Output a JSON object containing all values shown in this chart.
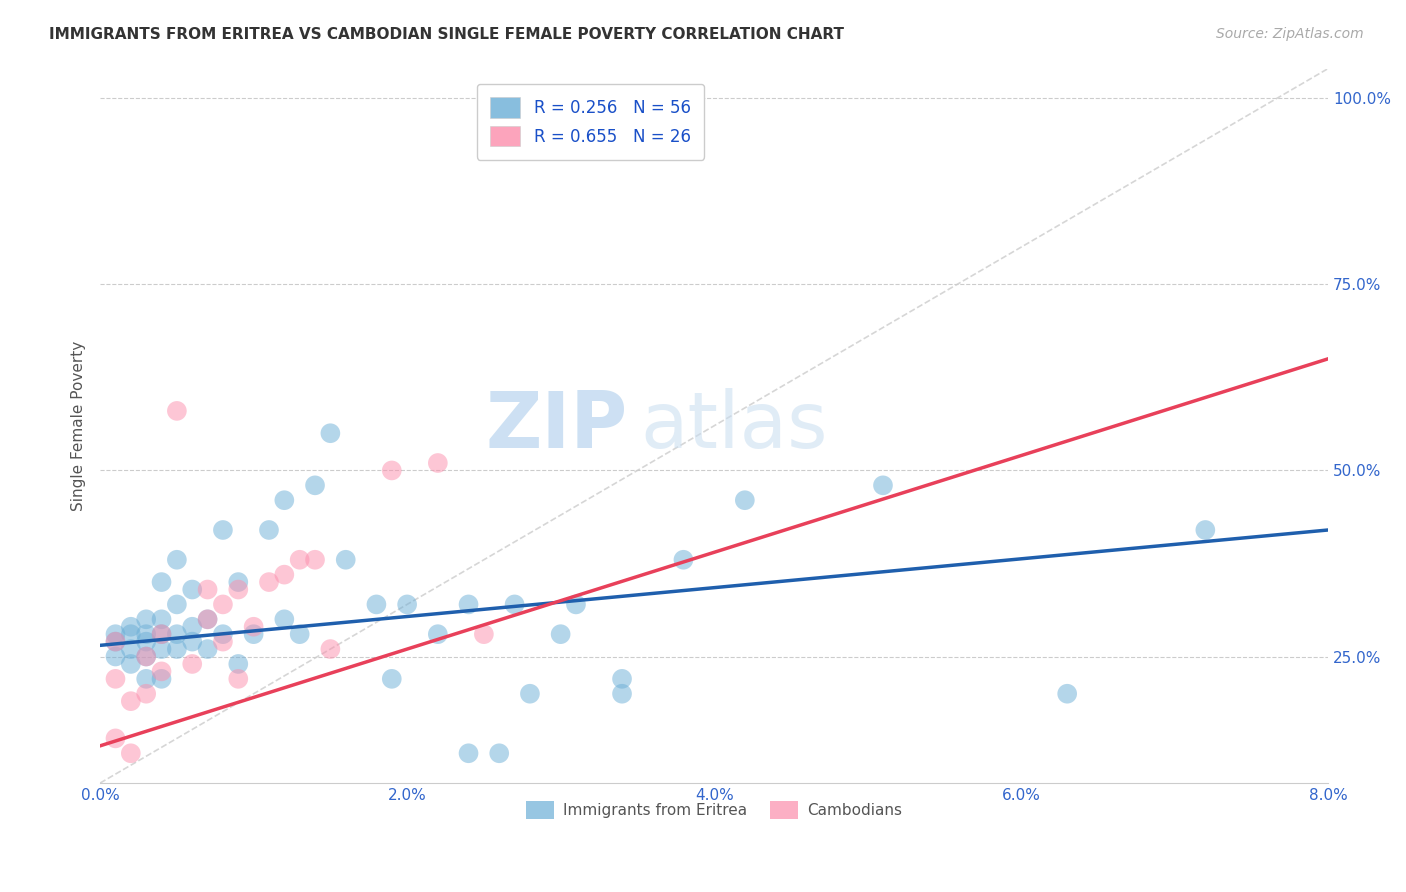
{
  "title": "IMMIGRANTS FROM ERITREA VS CAMBODIAN SINGLE FEMALE POVERTY CORRELATION CHART",
  "source": "Source: ZipAtlas.com",
  "xlabel": "",
  "ylabel": "Single Female Poverty",
  "xlim": [
    0.0,
    0.08
  ],
  "ylim": [
    0.08,
    1.04
  ],
  "xticks": [
    0.0,
    0.02,
    0.04,
    0.06,
    0.08
  ],
  "xticklabels": [
    "0.0%",
    "2.0%",
    "4.0%",
    "6.0%",
    "8.0%"
  ],
  "yticks": [
    0.25,
    0.5,
    0.75,
    1.0
  ],
  "yticklabels": [
    "25.0%",
    "50.0%",
    "75.0%",
    "100.0%"
  ],
  "legend1_label": "R = 0.256   N = 56",
  "legend2_label": "R = 0.655   N = 26",
  "legend_bottom_label1": "Immigrants from Eritrea",
  "legend_bottom_label2": "Cambodians",
  "blue_color": "#6baed6",
  "pink_color": "#fc8eac",
  "trend_blue": "#1f5fad",
  "trend_pink": "#e8405a",
  "watermark_zip": "ZIP",
  "watermark_atlas": "atlas",
  "blue_points_x": [
    0.001,
    0.001,
    0.001,
    0.002,
    0.002,
    0.002,
    0.002,
    0.003,
    0.003,
    0.003,
    0.003,
    0.003,
    0.004,
    0.004,
    0.004,
    0.004,
    0.004,
    0.005,
    0.005,
    0.005,
    0.005,
    0.006,
    0.006,
    0.006,
    0.007,
    0.007,
    0.008,
    0.008,
    0.009,
    0.009,
    0.01,
    0.011,
    0.012,
    0.012,
    0.013,
    0.014,
    0.015,
    0.016,
    0.018,
    0.019,
    0.02,
    0.022,
    0.024,
    0.024,
    0.026,
    0.027,
    0.028,
    0.03,
    0.031,
    0.034,
    0.034,
    0.038,
    0.042,
    0.051,
    0.063,
    0.072
  ],
  "blue_points_y": [
    0.27,
    0.28,
    0.25,
    0.26,
    0.28,
    0.29,
    0.24,
    0.27,
    0.3,
    0.28,
    0.25,
    0.22,
    0.26,
    0.28,
    0.3,
    0.35,
    0.22,
    0.26,
    0.28,
    0.32,
    0.38,
    0.27,
    0.29,
    0.34,
    0.26,
    0.3,
    0.28,
    0.42,
    0.24,
    0.35,
    0.28,
    0.42,
    0.3,
    0.46,
    0.28,
    0.48,
    0.55,
    0.38,
    0.32,
    0.22,
    0.32,
    0.28,
    0.32,
    0.12,
    0.12,
    0.32,
    0.2,
    0.28,
    0.32,
    0.22,
    0.2,
    0.38,
    0.46,
    0.48,
    0.2,
    0.42
  ],
  "pink_points_x": [
    0.001,
    0.001,
    0.001,
    0.002,
    0.002,
    0.003,
    0.003,
    0.004,
    0.004,
    0.005,
    0.006,
    0.007,
    0.007,
    0.008,
    0.008,
    0.009,
    0.009,
    0.01,
    0.011,
    0.012,
    0.013,
    0.014,
    0.015,
    0.019,
    0.022,
    0.025
  ],
  "pink_points_y": [
    0.27,
    0.22,
    0.14,
    0.19,
    0.12,
    0.25,
    0.2,
    0.28,
    0.23,
    0.58,
    0.24,
    0.3,
    0.34,
    0.27,
    0.32,
    0.34,
    0.22,
    0.29,
    0.35,
    0.36,
    0.38,
    0.38,
    0.26,
    0.5,
    0.51,
    0.28
  ],
  "blue_trend_x": [
    0.0,
    0.08
  ],
  "blue_trend_y": [
    0.265,
    0.42
  ],
  "pink_trend_x": [
    0.0,
    0.08
  ],
  "pink_trend_y": [
    0.13,
    0.65
  ],
  "ref_line_x": [
    0.0,
    0.08
  ],
  "ref_line_y": [
    0.08,
    1.04
  ]
}
